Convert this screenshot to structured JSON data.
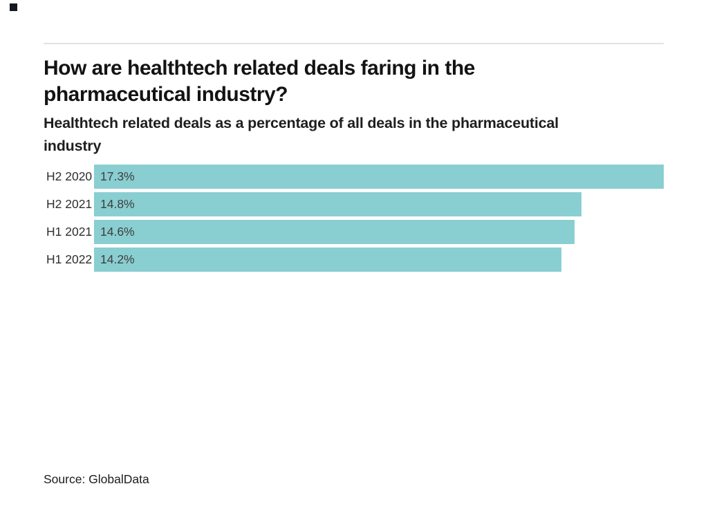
{
  "colors": {
    "background": "#FFFFFF",
    "bar_fill": "#89CED1",
    "brand_mark": "#15181E",
    "divider": "#E3E3E3",
    "title_text": "#131313",
    "subtitle_text": "#1E1E1E",
    "category_text": "#2E2E2E",
    "value_text": "#3E3E3E",
    "source_text": "#1C1C1C"
  },
  "header": {
    "title_lines": [
      "How are healthtech related deals faring in the",
      "pharmaceutical industry?"
    ],
    "subtitle_lines": [
      "Healthtech related deals as a percentage of all deals in the pharmaceutical",
      "industry"
    ]
  },
  "chart_data": {
    "type": "bar",
    "orientation": "horizontal",
    "title": "How are healthtech related deals faring in the pharmaceutical industry?",
    "subtitle": "Healthtech related deals as a percentage of all deals in the pharmaceutical industry",
    "categories": [
      "H2 2020",
      "H2 2021",
      "H1 2021",
      "H1 2022"
    ],
    "values": [
      17.3,
      14.8,
      14.6,
      14.2
    ],
    "value_labels": [
      "17.3%",
      "14.8%",
      "14.6%",
      "14.2%"
    ],
    "xlim": [
      0,
      17.3
    ],
    "xlabel": "",
    "ylabel": "",
    "grid": false,
    "legend": false
  },
  "footer": {
    "source_label": "Source: GlobalData"
  }
}
